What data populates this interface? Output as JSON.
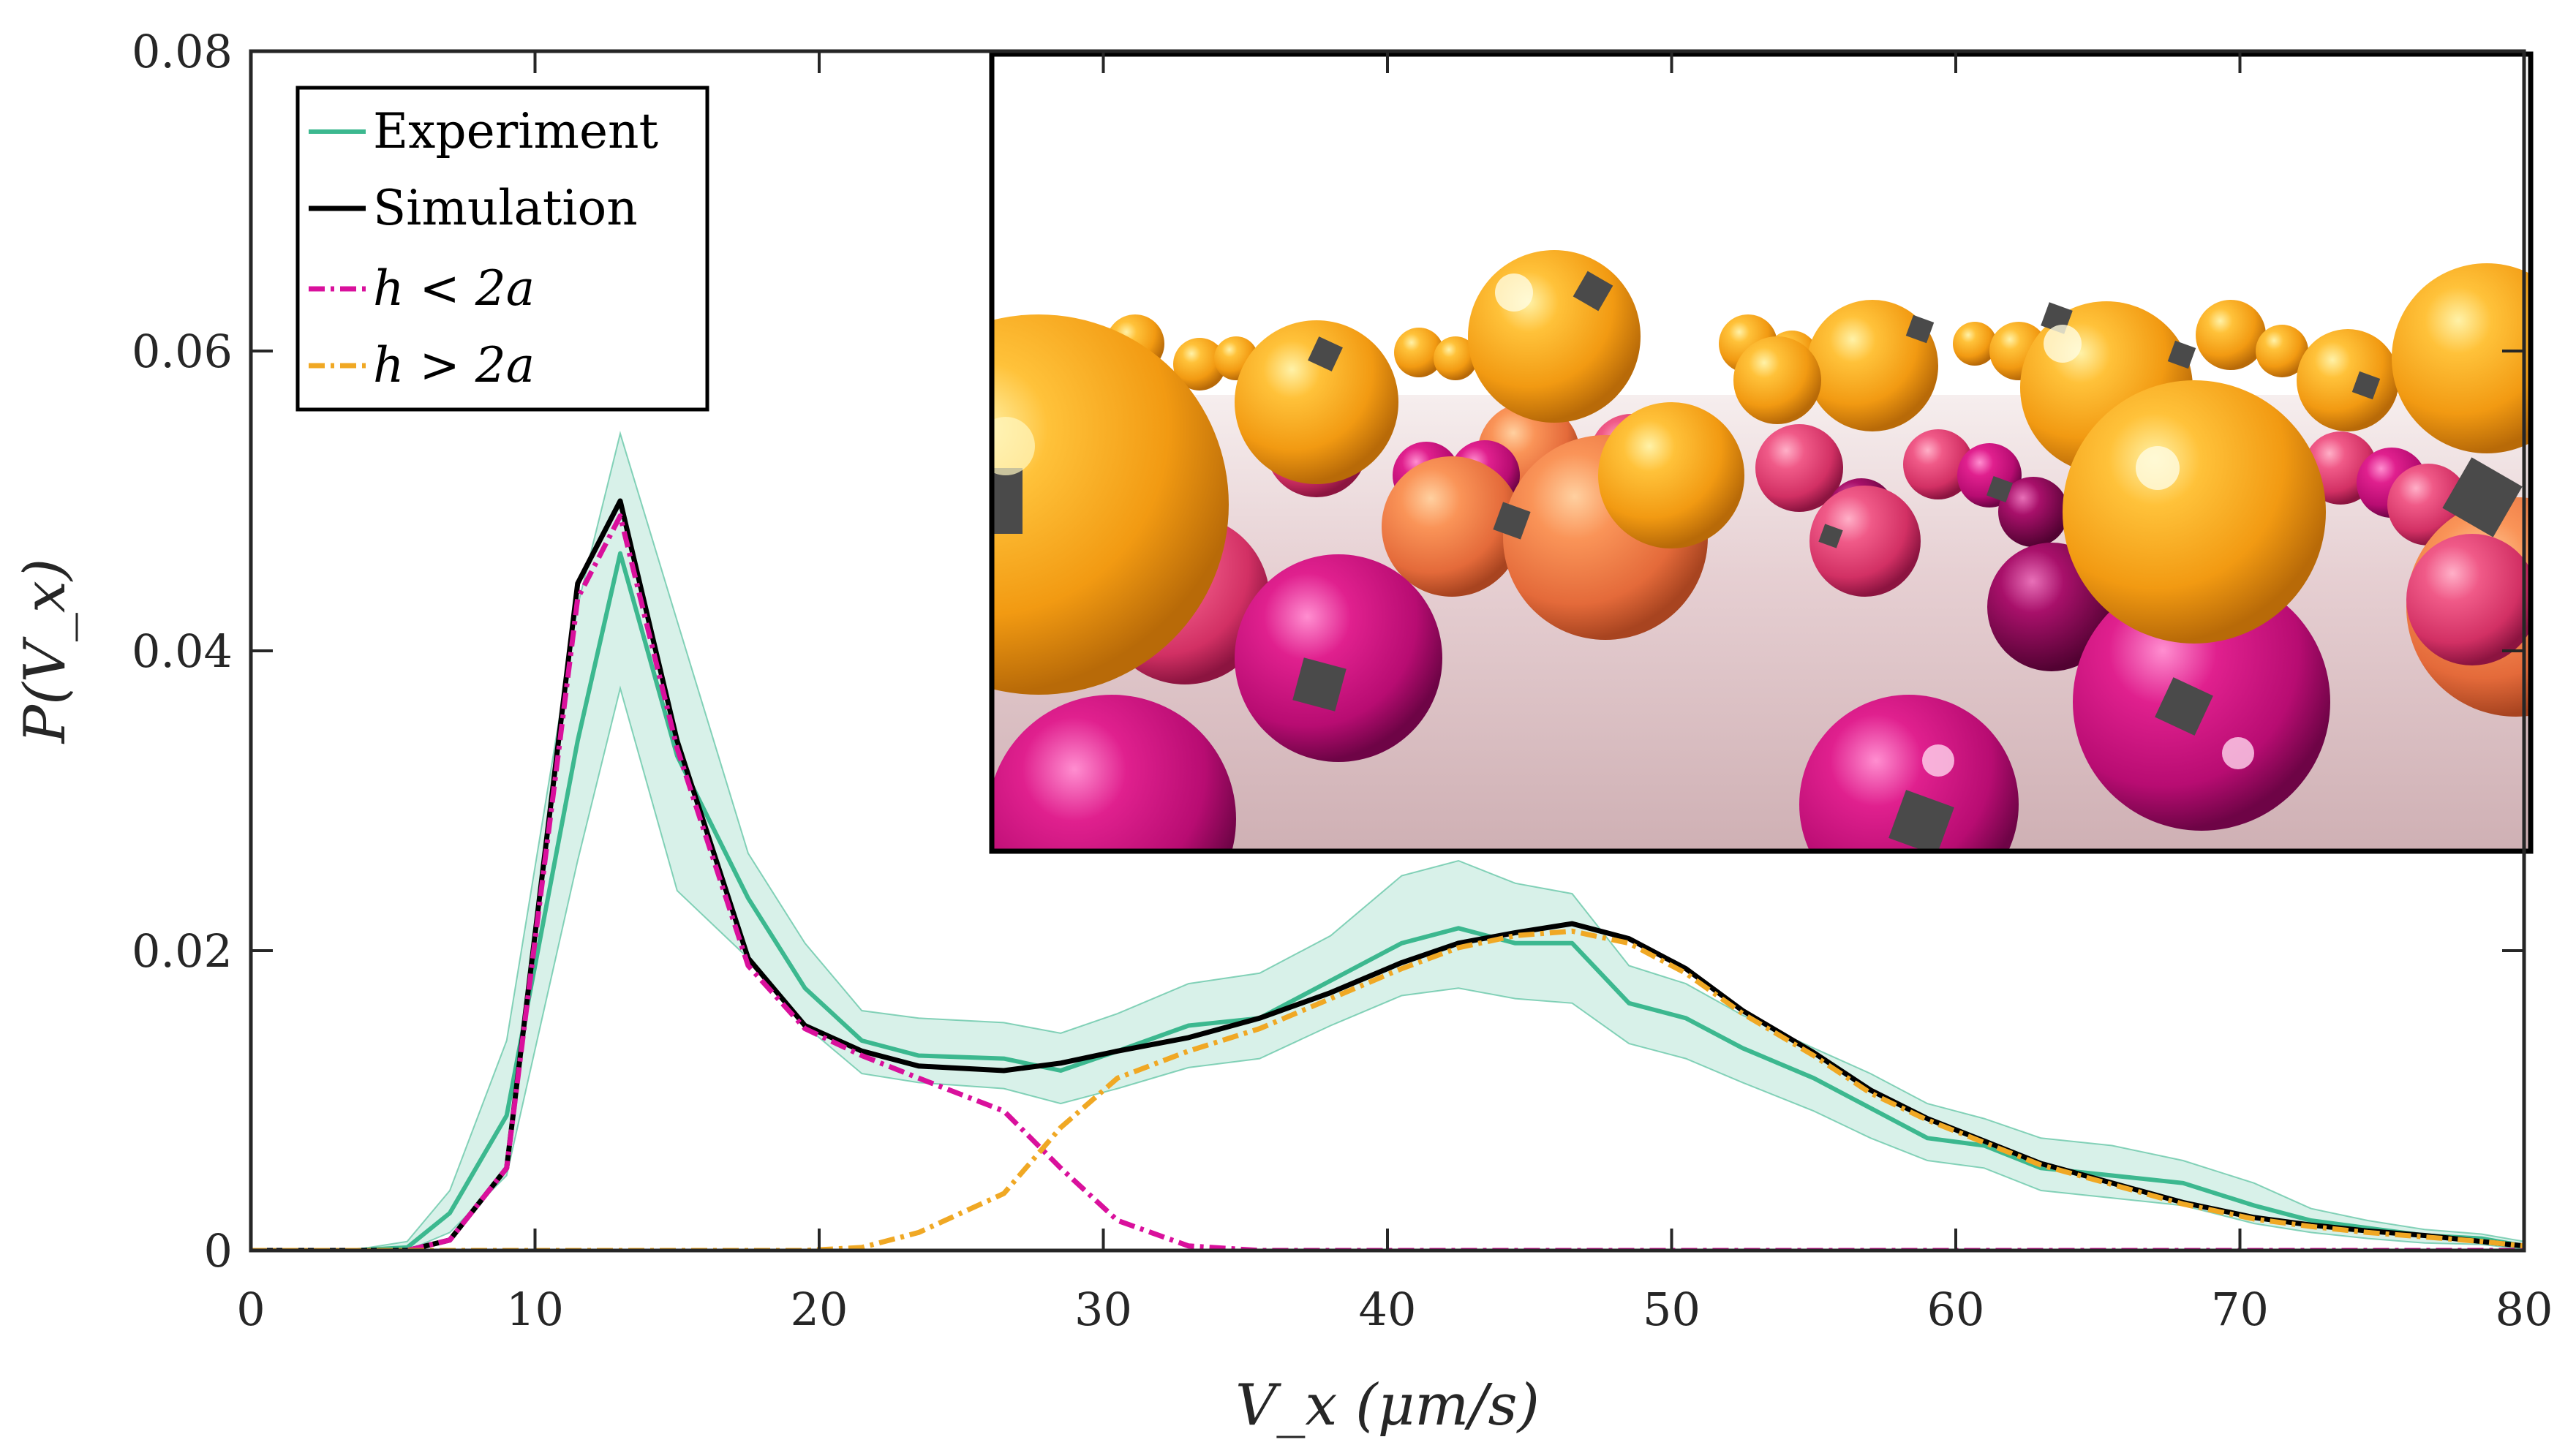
{
  "chart_data": {
    "type": "line",
    "title": "",
    "xlabel": "V_x (μm/s)",
    "ylabel": "P(V_x)",
    "xlim": [
      0,
      80
    ],
    "ylim": [
      0,
      0.08
    ],
    "xticks": [
      0,
      10,
      20,
      30,
      40,
      50,
      60,
      70,
      80
    ],
    "xtick_labels": [
      "0",
      "10",
      "20",
      "30",
      "40",
      "50",
      "60",
      "70",
      "80"
    ],
    "yticks": [
      0,
      0.02,
      0.04,
      0.06,
      0.08
    ],
    "ytick_labels": [
      "0",
      "0.02",
      "0.04",
      "0.06",
      "0.08"
    ],
    "grid": false,
    "legend_position": "top-left",
    "x": [
      0,
      1.5,
      3.5,
      5.5,
      7,
      9,
      11.5,
      13,
      15,
      17.5,
      19.5,
      21.5,
      23.5,
      26.5,
      28.5,
      30.5,
      33,
      35.5,
      38,
      40.5,
      42.5,
      44.5,
      46.5,
      48.5,
      50.5,
      52.5,
      55,
      57,
      59,
      61,
      63,
      65.5,
      68,
      70.5,
      72.5,
      74.5,
      76.5,
      78.5,
      80
    ],
    "series": [
      {
        "name": "Experiment",
        "color": "#3cb88f",
        "style": "solid",
        "values": [
          0,
          0,
          0,
          0.0002,
          0.0025,
          0.009,
          0.034,
          0.0465,
          0.033,
          0.0235,
          0.0175,
          0.014,
          0.013,
          0.0128,
          0.012,
          0.0133,
          0.015,
          0.0155,
          0.018,
          0.0205,
          0.0215,
          0.0205,
          0.0205,
          0.0165,
          0.0155,
          0.0135,
          0.0115,
          0.0095,
          0.0075,
          0.007,
          0.0055,
          0.005,
          0.0045,
          0.003,
          0.002,
          0.0015,
          0.001,
          0.0008,
          0.0003
        ],
        "band_upper": [
          0,
          0,
          0,
          0.0006,
          0.004,
          0.014,
          0.043,
          0.0545,
          0.042,
          0.0265,
          0.0205,
          0.016,
          0.0155,
          0.0152,
          0.0145,
          0.0158,
          0.0178,
          0.0185,
          0.021,
          0.025,
          0.026,
          0.0245,
          0.0238,
          0.019,
          0.0178,
          0.0157,
          0.0135,
          0.0118,
          0.0098,
          0.0088,
          0.0075,
          0.007,
          0.006,
          0.0045,
          0.0028,
          0.002,
          0.0014,
          0.0011,
          0.0006
        ],
        "band_lower": [
          0,
          0,
          0,
          0,
          0.0012,
          0.005,
          0.026,
          0.0375,
          0.024,
          0.0195,
          0.015,
          0.0118,
          0.0112,
          0.0108,
          0.0098,
          0.0108,
          0.0122,
          0.0128,
          0.015,
          0.017,
          0.0175,
          0.0168,
          0.0165,
          0.0138,
          0.0128,
          0.0112,
          0.0093,
          0.0075,
          0.006,
          0.0055,
          0.004,
          0.0035,
          0.003,
          0.0018,
          0.0012,
          0.0008,
          0.0005,
          0.0004,
          0.0001
        ]
      },
      {
        "name": "Simulation",
        "color": "#000000",
        "style": "solid",
        "values": [
          0,
          0,
          0,
          0,
          0.0007,
          0.0055,
          0.0445,
          0.05,
          0.034,
          0.0195,
          0.015,
          0.0133,
          0.0123,
          0.012,
          0.0125,
          0.0133,
          0.0142,
          0.0155,
          0.0172,
          0.0192,
          0.0205,
          0.0212,
          0.0218,
          0.0208,
          0.0188,
          0.016,
          0.0132,
          0.0107,
          0.0088,
          0.0073,
          0.0058,
          0.0045,
          0.0032,
          0.0022,
          0.0017,
          0.0013,
          0.001,
          0.0006,
          0.0003
        ]
      },
      {
        "name": "h < 2a",
        "color": "#d9109c",
        "style": "dashdot",
        "values": [
          0,
          0,
          0,
          0,
          0.0007,
          0.0055,
          0.0435,
          0.049,
          0.0335,
          0.019,
          0.0148,
          0.013,
          0.0115,
          0.0093,
          0.0055,
          0.002,
          0.0003,
          0,
          0,
          0,
          0,
          0,
          0,
          0,
          0,
          0,
          0,
          0,
          0,
          0,
          0,
          0,
          0,
          0,
          0,
          0,
          0,
          0,
          0
        ]
      },
      {
        "name": "h > 2a",
        "color": "#f0a824",
        "style": "dashdot",
        "values": [
          0,
          0,
          0,
          0,
          0,
          0,
          0,
          0,
          0,
          0,
          0,
          0.0002,
          0.0012,
          0.0038,
          0.0082,
          0.0115,
          0.0133,
          0.0148,
          0.0168,
          0.0188,
          0.0202,
          0.021,
          0.0213,
          0.0205,
          0.0185,
          0.0158,
          0.013,
          0.0105,
          0.0087,
          0.0072,
          0.0057,
          0.0044,
          0.0031,
          0.0021,
          0.0016,
          0.0012,
          0.0009,
          0.0006,
          0.0003
        ]
      }
    ]
  },
  "legend": {
    "items": [
      {
        "label": "Experiment",
        "color": "#3cb88f",
        "style": "solid"
      },
      {
        "label": "Simulation",
        "color": "#000000",
        "style": "solid"
      },
      {
        "label": "h < 2a",
        "color": "#d9109c",
        "style": "dashdot"
      },
      {
        "label": "h > 2a",
        "color": "#f0a824",
        "style": "dashdot"
      }
    ]
  },
  "inset": {
    "description_colors": {
      "sky": "#ffffff",
      "floor": "#e8d4d6",
      "orange": "#f5a020",
      "coral": "#f07a50",
      "magenta": "#c81a78",
      "dark_magenta": "#9a0a5a",
      "patch": "#4a4a4a"
    }
  }
}
